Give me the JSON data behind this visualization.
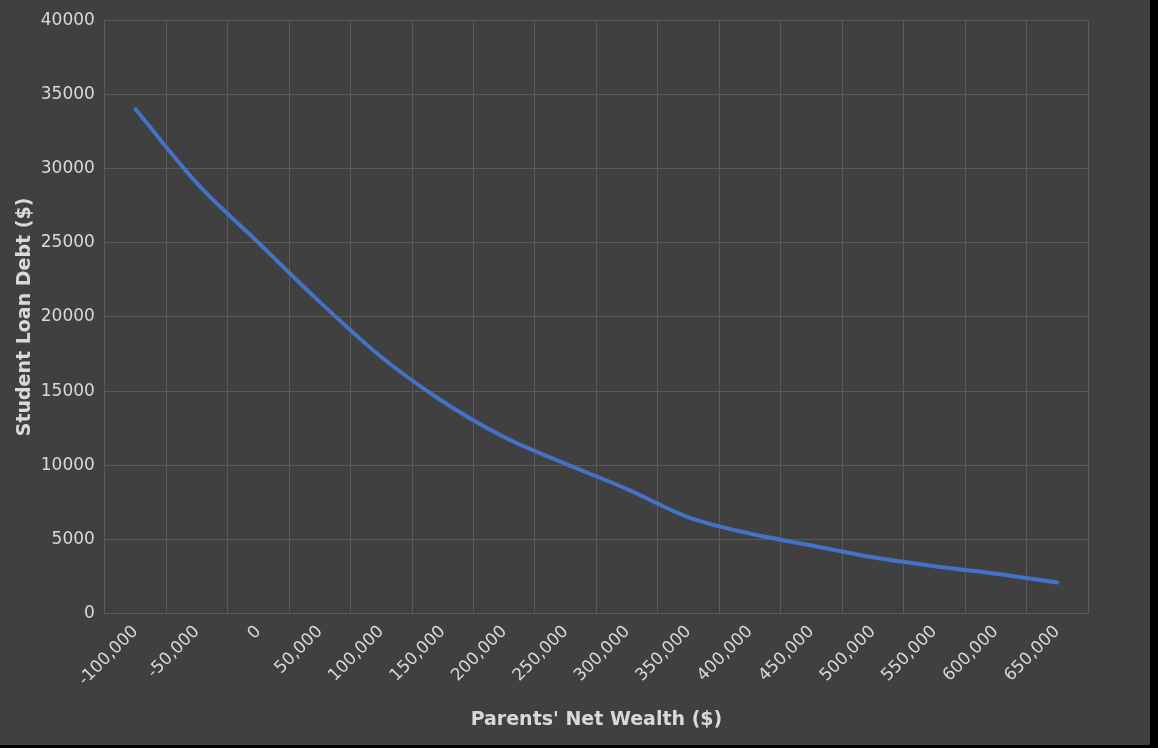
{
  "chart_data": {
    "type": "line",
    "xlabel": "Parents' Net Wealth ($)",
    "ylabel": "Student Loan Debt ($)",
    "categories": [
      "-100,000",
      "-50,000",
      "0",
      "50,000",
      "100,000",
      "150,000",
      "200,000",
      "250,000",
      "300,000",
      "350,000",
      "400,000",
      "450,000",
      "500,000",
      "550,000",
      "600,000",
      "650,000"
    ],
    "values": [
      34000,
      29000,
      25000,
      21000,
      17300,
      14300,
      11900,
      10100,
      8400,
      6500,
      5400,
      4600,
      3800,
      3200,
      2700,
      2100
    ],
    "color": "#4472c4",
    "ylim": [
      0,
      40000
    ],
    "yticks": [
      0,
      5000,
      10000,
      15000,
      20000,
      25000,
      30000,
      35000,
      40000
    ],
    "grid": true
  }
}
